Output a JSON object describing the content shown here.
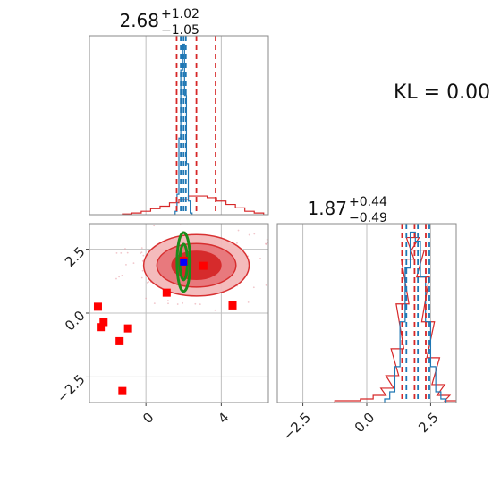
{
  "kl_text": "KL = 0.00",
  "colors": {
    "reference": "#1f77b4",
    "comparison": "#d62728",
    "comparison_fill_light": "#f4b8b9",
    "comparison_fill_mid": "#e8767a",
    "comparison_fill_dark": "#d62728",
    "ellipse": "#1a8c1a",
    "marker_red": "#ff0000",
    "marker_blue": "#0000ff",
    "grid": "#bfbfbf",
    "frame": "#888888"
  },
  "chart_data": [
    {
      "id": "marginal-param1",
      "type": "line",
      "title": {
        "value": "2.68",
        "sup": "+1.02",
        "sub": "−1.05"
      },
      "xlim": [
        -3.0,
        6.5
      ],
      "grid": true,
      "xticks": [
        0,
        4
      ],
      "series": [
        {
          "color": "#d62728",
          "style": "step",
          "x": [
            -1.0,
            -0.5,
            0.0,
            0.5,
            1.0,
            1.5,
            2.0,
            2.5,
            3.0,
            3.5,
            4.0,
            4.5,
            5.0,
            5.5,
            6.0
          ],
          "y": [
            0.004,
            0.01,
            0.02,
            0.035,
            0.05,
            0.07,
            0.09,
            0.11,
            0.11,
            0.1,
            0.08,
            0.06,
            0.04,
            0.02,
            0.01
          ]
        },
        {
          "color": "#1f77b4",
          "style": "step",
          "x": [
            1.6,
            1.7,
            1.8,
            1.9,
            2.0,
            2.1,
            2.2,
            2.3,
            2.4
          ],
          "y": [
            0.02,
            0.12,
            0.45,
            0.85,
            1.0,
            0.7,
            0.3,
            0.08,
            0.01
          ]
        }
      ],
      "quantile_lines": [
        {
          "color": "#d62728",
          "values": [
            1.63,
            2.68,
            3.7
          ]
        },
        {
          "color": "#1f77b4",
          "values": [
            1.85,
            2.0,
            2.12
          ]
        }
      ]
    },
    {
      "id": "marginal-param2",
      "type": "line",
      "title": {
        "value": "1.87",
        "sup": "+0.44",
        "sub": "−0.49"
      },
      "xlim": [
        -3.5,
        3.5
      ],
      "grid": true,
      "xticks": [
        -2.5,
        0.0,
        2.5
      ],
      "xtick_labels": [
        "−2.5",
        "0.0",
        "2.5"
      ],
      "series": [
        {
          "color": "#d62728",
          "style": "step",
          "x": [
            -1.0,
            -0.5,
            0.0,
            0.5,
            0.8,
            1.0,
            1.2,
            1.4,
            1.6,
            1.8,
            2.0,
            2.2,
            2.4,
            2.6,
            2.8,
            3.0,
            3.3
          ],
          "y": [
            0.01,
            0.01,
            0.02,
            0.04,
            0.08,
            0.15,
            0.3,
            0.55,
            0.8,
            0.92,
            0.85,
            0.7,
            0.45,
            0.25,
            0.1,
            0.04,
            0.01
          ]
        },
        {
          "color": "#1f77b4",
          "style": "step",
          "x": [
            0.8,
            1.0,
            1.2,
            1.4,
            1.6,
            1.8,
            2.0,
            2.2,
            2.4,
            2.6,
            2.8,
            3.0
          ],
          "y": [
            0.02,
            0.06,
            0.2,
            0.45,
            0.75,
            0.95,
            0.9,
            0.7,
            0.45,
            0.2,
            0.06,
            0.02
          ]
        }
      ],
      "quantile_lines": [
        {
          "color": "#d62728",
          "values": [
            1.38,
            1.87,
            2.31
          ]
        },
        {
          "color": "#1f77b4",
          "values": [
            1.55,
            2.0,
            2.45
          ]
        }
      ]
    },
    {
      "id": "joint-param1-param2",
      "type": "scatter",
      "xlim": [
        -3.0,
        6.5
      ],
      "ylim": [
        -3.5,
        3.5
      ],
      "grid": true,
      "xticks": [
        0,
        4
      ],
      "yticks": [
        -2.5,
        0.0,
        2.5
      ],
      "ytick_labels": [
        "−2.5",
        "0.0",
        "2.5"
      ],
      "contours": {
        "color": "#d62728",
        "center": [
          2.68,
          1.87
        ],
        "levels": [
          {
            "rx": 2.8,
            "ry": 1.2
          },
          {
            "rx": 2.1,
            "ry": 0.85
          },
          {
            "rx": 1.3,
            "ry": 0.55
          }
        ]
      },
      "reference_ellipses": {
        "color": "#1a8c1a",
        "center": [
          2.0,
          2.0
        ],
        "levels": [
          {
            "rx": 0.35,
            "ry": 1.15
          },
          {
            "rx": 0.2,
            "ry": 0.7
          }
        ]
      },
      "red_markers": [
        {
          "x": -2.55,
          "y": 0.25
        },
        {
          "x": -2.25,
          "y": -0.35
        },
        {
          "x": -2.4,
          "y": -0.55
        },
        {
          "x": -0.95,
          "y": -0.6
        },
        {
          "x": -1.4,
          "y": -1.1
        },
        {
          "x": -1.25,
          "y": -3.05
        },
        {
          "x": 1.1,
          "y": 0.8
        },
        {
          "x": 3.05,
          "y": 1.85
        },
        {
          "x": 4.6,
          "y": 0.3
        },
        {
          "x": 2.0,
          "y": 2.05
        }
      ],
      "blue_marker": {
        "x": 2.0,
        "y": 2.0
      }
    }
  ]
}
